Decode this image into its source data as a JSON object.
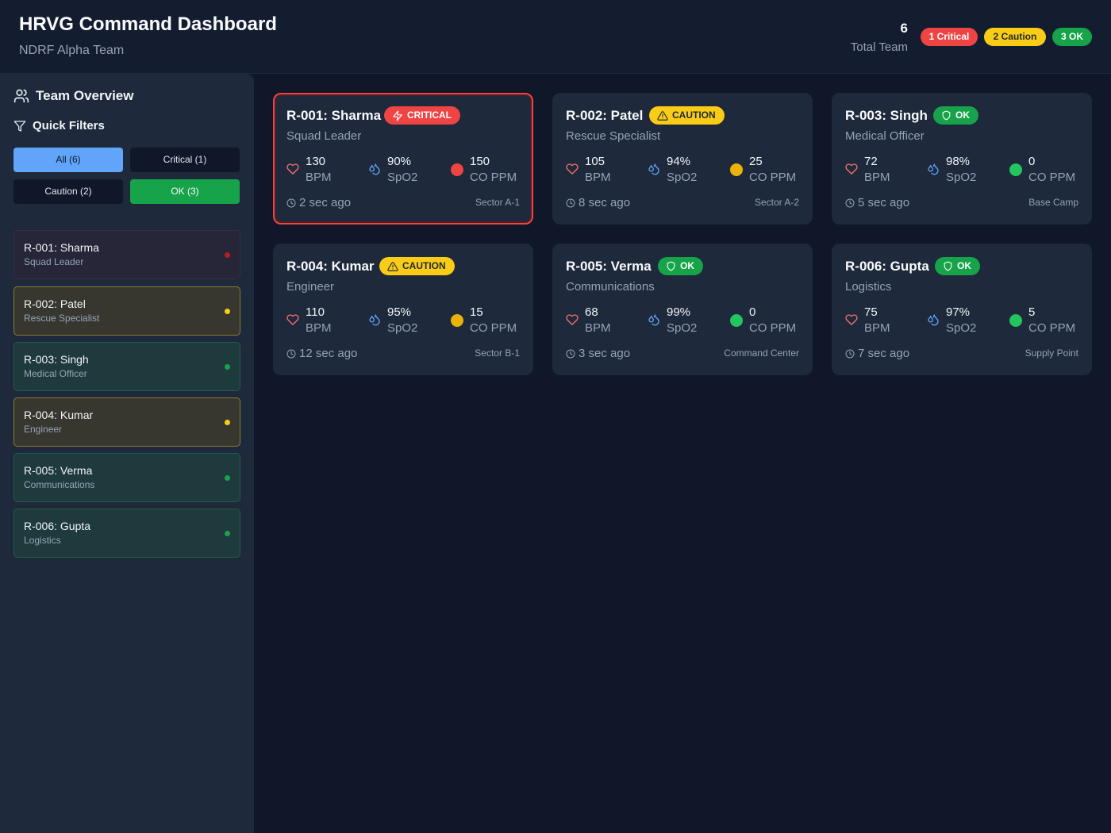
{
  "header": {
    "title": "HRVG Command Dashboard",
    "subtitle": "NDRF Alpha Team",
    "team_count": "6",
    "team_count_label": "Total Team",
    "badges": {
      "critical": "1 Critical",
      "caution": "2 Caution",
      "ok": "3 OK"
    }
  },
  "sidebar": {
    "heading": "Team Overview",
    "filters_heading": "Quick Filters",
    "filters": {
      "all": "All (6)",
      "critical": "Critical (1)",
      "caution": "Caution (2)",
      "ok": "OK (3)"
    },
    "members": [
      {
        "name": "R-001: Sharma",
        "role": "Squad Leader",
        "status": "critical"
      },
      {
        "name": "R-002: Patel",
        "role": "Rescue Specialist",
        "status": "caution"
      },
      {
        "name": "R-003: Singh",
        "role": "Medical Officer",
        "status": "ok"
      },
      {
        "name": "R-004: Kumar",
        "role": "Engineer",
        "status": "caution"
      },
      {
        "name": "R-005: Verma",
        "role": "Communications",
        "status": "ok"
      },
      {
        "name": "R-006: Gupta",
        "role": "Logistics",
        "status": "ok"
      }
    ]
  },
  "units": {
    "heart": "BPM",
    "spo2": "SpO2",
    "co": "CO PPM"
  },
  "cards": [
    {
      "name": "R-001: Sharma",
      "badge": "CRITICAL",
      "role": "Squad Leader",
      "bpm": "130",
      "spo2": "90%",
      "co": "150",
      "co_color": "#ef4444",
      "time": "2 sec ago",
      "sector": "Sector A-1"
    },
    {
      "name": "R-002: Patel",
      "badge": "CAUTION",
      "role": "Rescue Specialist",
      "bpm": "105",
      "spo2": "94%",
      "co": "25",
      "co_color": "#eab308",
      "time": "8 sec ago",
      "sector": "Sector A-2"
    },
    {
      "name": "R-003: Singh",
      "badge": "OK",
      "role": "Medical Officer",
      "bpm": "72",
      "spo2": "98%",
      "co": "0",
      "co_color": "#22c55e",
      "time": "5 sec ago",
      "sector": "Base Camp"
    },
    {
      "name": "R-004: Kumar",
      "badge": "CAUTION",
      "role": "Engineer",
      "bpm": "110",
      "spo2": "95%",
      "co": "15",
      "co_color": "#eab308",
      "time": "12 sec ago",
      "sector": "Sector B-1"
    },
    {
      "name": "R-005: Verma",
      "badge": "OK",
      "role": "Communications",
      "bpm": "68",
      "spo2": "99%",
      "co": "0",
      "co_color": "#22c55e",
      "time": "3 sec ago",
      "sector": "Command Center"
    },
    {
      "name": "R-006: Gupta",
      "badge": "OK",
      "role": "Logistics",
      "bpm": "75",
      "spo2": "97%",
      "co": "5",
      "co_color": "#22c55e",
      "time": "7 sec ago",
      "sector": "Supply Point"
    }
  ],
  "colors": {
    "critical": "#ef4444",
    "caution": "#facc15",
    "ok": "#16a34a",
    "accent": "#60a5fa",
    "background": "#0f1729",
    "panel": "#1e293b"
  }
}
